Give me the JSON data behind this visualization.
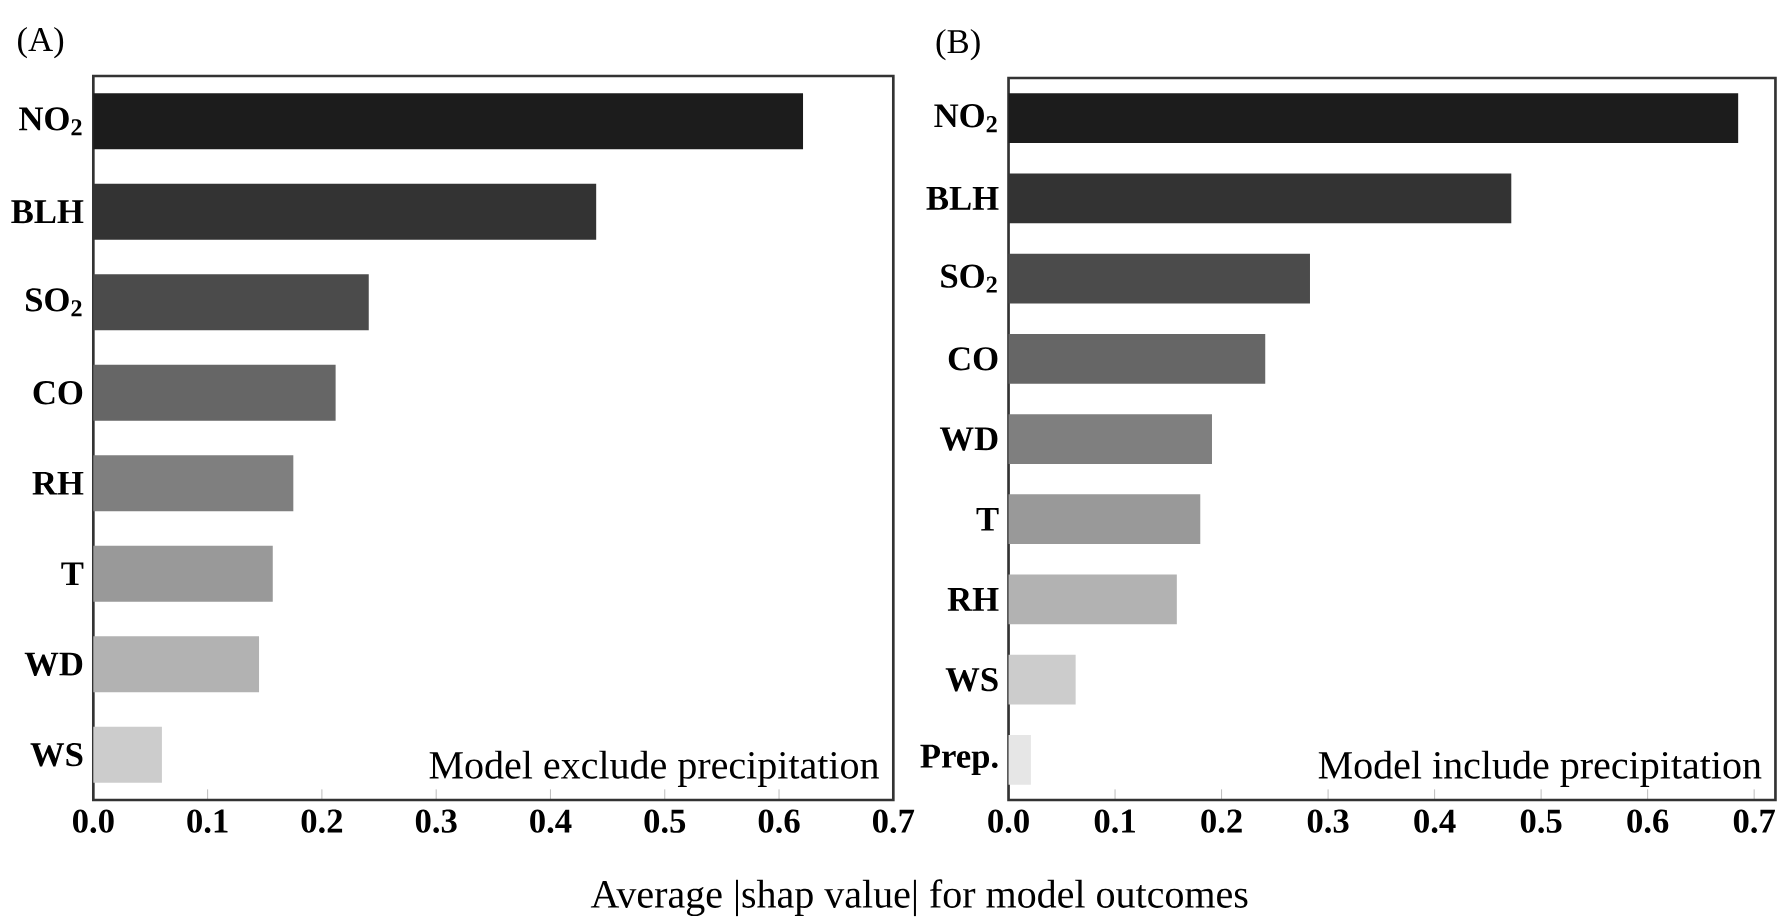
{
  "chart_data": [
    {
      "type": "bar",
      "orientation": "horizontal",
      "title": "(A)",
      "xlabel": "Average |shap value| for model outcomes",
      "categories": [
        "NO$_{2}$",
        "BLH",
        "SO$_{2}$",
        "CO",
        "RH",
        "T",
        "WD",
        "WS"
      ],
      "values": [
        0.621,
        0.44,
        0.241,
        0.212,
        0.175,
        0.157,
        0.145,
        0.06
      ],
      "colors": [
        "#1c1c1c",
        "#333333",
        "#4b4b4b",
        "#666666",
        "#7f7f7f",
        "#999999",
        "#b2b2b2",
        "#cccccc"
      ],
      "xlim": [
        0,
        0.7
      ],
      "xticks": [
        {
          "value": 0,
          "label": "0.0"
        },
        0.1,
        0.2,
        0.3,
        0.4,
        0.5,
        0.6,
        0.7
      ],
      "annotations": [
        "Model exclude precipitation"
      ]
    },
    {
      "type": "bar",
      "orientation": "horizontal",
      "title": "(B)",
      "categories": [
        "NO$_{2}$",
        "BLH",
        "SO$_{2}$",
        "CO",
        "WD",
        "T",
        "RH",
        "WS",
        "Prep."
      ],
      "values": [
        0.685,
        0.472,
        0.283,
        0.241,
        0.191,
        0.18,
        0.158,
        0.063,
        0.021
      ],
      "colors": [
        "#1c1c1c",
        "#333333",
        "#4b4b4b",
        "#666666",
        "#7f7f7f",
        "#999999",
        "#b2b2b2",
        "#cccccc",
        "#e6e6e6"
      ],
      "xlim": [
        0,
        0.72
      ],
      "xticks": [
        {
          "value": 0,
          "label": "0.0"
        },
        0.1,
        0.2,
        0.3,
        0.4,
        0.5,
        0.6,
        0.7
      ],
      "annotations": [
        "Model include precipitation"
      ]
    }
  ]
}
